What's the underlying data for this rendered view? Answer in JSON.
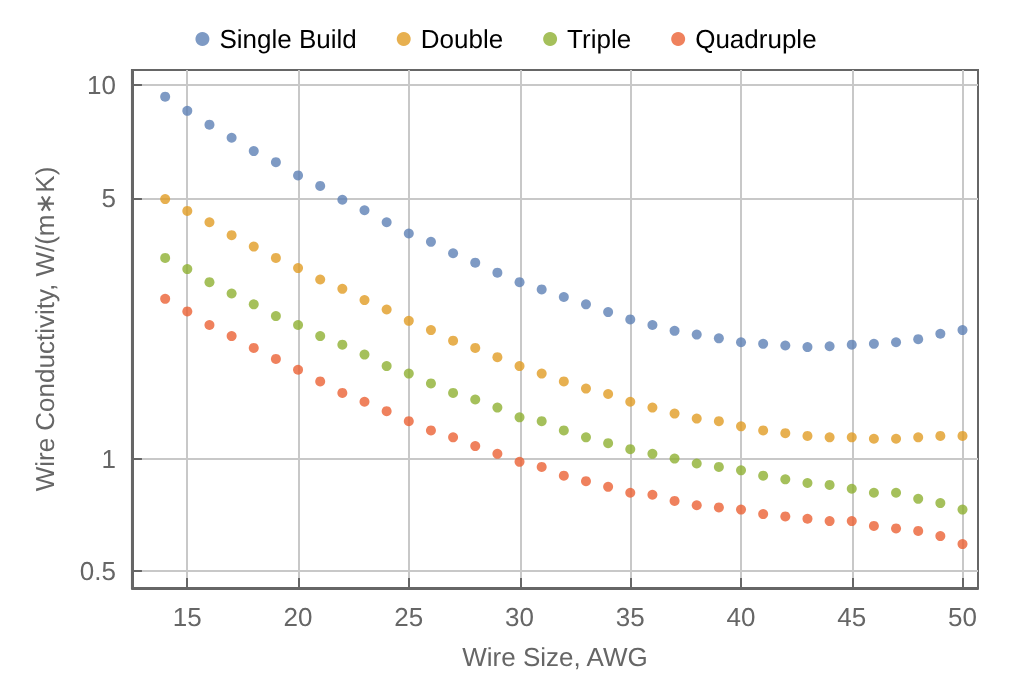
{
  "chart_data": {
    "type": "scatter",
    "xlabel": "Wire Size, AWG",
    "ylabel": "Wire Conductivity, W/(m∗K)",
    "log": "y",
    "grid": true,
    "legend": "top",
    "marker": "circle",
    "x": [
      14,
      15,
      16,
      17,
      18,
      19,
      20,
      21,
      22,
      23,
      24,
      25,
      26,
      27,
      28,
      29,
      30,
      31,
      32,
      33,
      34,
      35,
      36,
      37,
      38,
      39,
      40,
      41,
      42,
      43,
      44,
      45,
      46,
      47,
      48,
      49,
      50
    ],
    "xlim": [
      12.5,
      50.7
    ],
    "xticks": [
      15,
      20,
      25,
      30,
      35,
      40,
      45,
      50
    ],
    "ylim": [
      0.45,
      11
    ],
    "yticks": [
      0.5,
      1,
      5,
      10
    ],
    "series": [
      {
        "name": "Single Build",
        "color": "#5e81b5",
        "values": [
          9.33,
          8.55,
          7.85,
          7.24,
          6.67,
          6.23,
          5.74,
          5.38,
          4.94,
          4.63,
          4.3,
          4.01,
          3.81,
          3.55,
          3.35,
          3.15,
          2.97,
          2.84,
          2.71,
          2.59,
          2.47,
          2.36,
          2.28,
          2.2,
          2.15,
          2.1,
          2.05,
          2.03,
          2.01,
          1.99,
          2.0,
          2.02,
          2.03,
          2.05,
          2.09,
          2.16,
          2.21
        ]
      },
      {
        "name": "Double",
        "color": "#e19c24",
        "values": [
          4.96,
          4.61,
          4.3,
          3.97,
          3.7,
          3.45,
          3.24,
          3.02,
          2.85,
          2.66,
          2.51,
          2.34,
          2.21,
          2.07,
          1.98,
          1.87,
          1.77,
          1.69,
          1.61,
          1.54,
          1.49,
          1.42,
          1.37,
          1.32,
          1.28,
          1.26,
          1.22,
          1.19,
          1.17,
          1.15,
          1.14,
          1.14,
          1.13,
          1.13,
          1.14,
          1.15,
          1.15
        ]
      },
      {
        "name": "Triple",
        "color": "#8fb032",
        "values": [
          3.45,
          3.22,
          2.97,
          2.77,
          2.59,
          2.41,
          2.28,
          2.13,
          2.02,
          1.9,
          1.77,
          1.69,
          1.59,
          1.5,
          1.44,
          1.37,
          1.29,
          1.26,
          1.19,
          1.14,
          1.1,
          1.06,
          1.03,
          1.0,
          0.97,
          0.95,
          0.93,
          0.9,
          0.88,
          0.86,
          0.85,
          0.83,
          0.81,
          0.81,
          0.78,
          0.76,
          0.73
        ]
      },
      {
        "name": "Quadruple",
        "color": "#eb6235",
        "values": [
          2.68,
          2.48,
          2.28,
          2.13,
          1.98,
          1.85,
          1.73,
          1.61,
          1.5,
          1.42,
          1.34,
          1.26,
          1.19,
          1.14,
          1.08,
          1.03,
          0.98,
          0.95,
          0.9,
          0.87,
          0.84,
          0.81,
          0.8,
          0.77,
          0.75,
          0.74,
          0.73,
          0.71,
          0.7,
          0.69,
          0.68,
          0.68,
          0.66,
          0.65,
          0.64,
          0.62,
          0.59
        ]
      }
    ]
  }
}
